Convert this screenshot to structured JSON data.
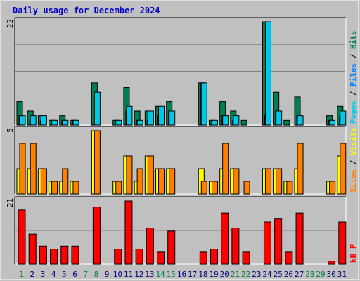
{
  "chart_data": {
    "title": "Daily usage for December 2024",
    "colors": {
      "title": "#0000cc",
      "background": "#c0c0c0",
      "hits": "#00c8e8",
      "files": "#0080ff",
      "pages": "#008050",
      "visits": "#ff8000",
      "sites": "#ffff00",
      "kbytes": "#ff0000",
      "weekend_label": "#008040",
      "weekday_label": "#000080"
    },
    "x": {
      "days": [
        "1",
        "2",
        "3",
        "4",
        "5",
        "6",
        "7",
        "8",
        "9",
        "10",
        "11",
        "12",
        "13",
        "14",
        "15",
        "16",
        "17",
        "18",
        "19",
        "20",
        "21",
        "22",
        "23",
        "24",
        "25",
        "26",
        "27",
        "28",
        "29",
        "30",
        "31"
      ],
      "weekend_days": [
        "1",
        "7",
        "8",
        "14",
        "15",
        "21",
        "22",
        "28",
        "29"
      ]
    },
    "charts": [
      {
        "type": "bar",
        "name": "hits-files-pages",
        "ymax_label": "22",
        "ymax": 22,
        "grid_fractions": [
          0.5,
          0.75
        ],
        "legend": [
          {
            "text": "Pages",
            "color": "#00c8e8"
          },
          {
            "text": " / ",
            "color": "#000000"
          },
          {
            "text": "Files",
            "color": "#0080ff"
          },
          {
            "text": " / ",
            "color": "#000000"
          },
          {
            "text": "Hits",
            "color": "#008050"
          }
        ],
        "series": [
          {
            "name": "Hits",
            "color": "#008050",
            "offset": 0,
            "width": 8,
            "values": [
              5,
              3,
              2,
              1,
              2,
              1,
              0,
              9,
              0,
              1,
              8,
              3,
              3,
              4,
              5,
              0,
              0,
              9,
              1,
              5,
              3,
              1,
              0,
              22,
              7,
              1,
              6,
              0,
              0,
              2,
              4
            ]
          },
          {
            "name": "Files",
            "color": "#0080ff",
            "offset": 3,
            "width": 5,
            "values": [
              2,
              1,
              1,
              1,
              1,
              1,
              0,
              6,
              0,
              1,
              3,
              1,
              1,
              2,
              3,
              0,
              0,
              9,
              1,
              2,
              1,
              0,
              0,
              2,
              3,
              0,
              2,
              0,
              0,
              1,
              2
            ]
          },
          {
            "name": "Pages",
            "color": "#00c8e8",
            "offset": 4,
            "width": 8,
            "values": [
              2,
              2,
              2,
              1,
              1,
              1,
              0,
              7,
              0,
              1,
              4,
              1,
              3,
              4,
              3,
              0,
              0,
              9,
              1,
              2,
              2,
              0,
              0,
              22,
              3,
              0,
              2,
              0,
              0,
              1,
              3
            ]
          }
        ]
      },
      {
        "type": "bar",
        "name": "visits-sites",
        "ymax_label": "5",
        "ymax": 5,
        "grid_fractions": [],
        "legend": [
          {
            "text": "Sites",
            "color": "#ff8000"
          },
          {
            "text": " / ",
            "color": "#000000"
          },
          {
            "text": "Visits",
            "color": "#ffff00"
          }
        ],
        "series": [
          {
            "name": "Visits",
            "color": "#ffff00",
            "offset": 0,
            "width": 8,
            "values": [
              2,
              2,
              2,
              1,
              1,
              1,
              0,
              5,
              0,
              1,
              3,
              1,
              3,
              2,
              2,
              0,
              0,
              2,
              1,
              2,
              2,
              0,
              0,
              2,
              2,
              1,
              2,
              0,
              0,
              1,
              3
            ]
          },
          {
            "name": "Sites",
            "color": "#ff8000",
            "offset": 4,
            "width": 8,
            "values": [
              4,
              4,
              2,
              1,
              2,
              1,
              0,
              5,
              0,
              1,
              3,
              2,
              3,
              2,
              2,
              0,
              0,
              1,
              1,
              4,
              2,
              1,
              0,
              2,
              2,
              1,
              4,
              0,
              0,
              1,
              4
            ]
          }
        ]
      },
      {
        "type": "bar",
        "name": "kbytes",
        "ymax_label": "21",
        "ymax": 21,
        "grid_fractions": [
          0.5
        ],
        "legend": [
          {
            "text": "kB F",
            "color": "#ff0000"
          }
        ],
        "series": [
          {
            "name": "kB F",
            "color": "#ff0000",
            "offset": 2,
            "width": 10,
            "values": [
              18,
              10,
              6,
              5,
              6,
              6,
              0,
              19,
              0,
              5,
              21,
              5,
              12,
              4,
              11,
              0,
              0,
              4,
              5,
              17,
              12,
              4,
              0,
              14,
              15,
              4,
              17,
              0,
              0,
              1,
              14
            ]
          }
        ]
      }
    ]
  }
}
